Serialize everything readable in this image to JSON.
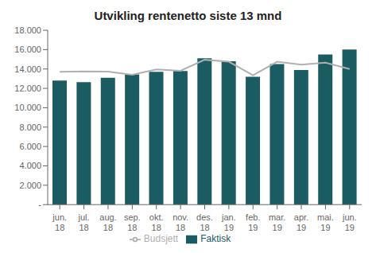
{
  "chart_data": {
    "type": "bar",
    "title": "Utvikling rentenetto siste 13  mnd",
    "categories": [
      "jun.\n18",
      "jul.\n18",
      "aug.\n18",
      "sep.\n18",
      "okt.\n18",
      "nov.\n18",
      "des.\n18",
      "jan.\n19",
      "feb.\n19",
      "mar.\n19",
      "apr.\n19",
      "mai.\n19",
      "jun.\n19"
    ],
    "series": [
      {
        "name": "Faktisk",
        "type": "bar",
        "color": "#1a5c62",
        "values": [
          12800,
          12650,
          13100,
          13450,
          13700,
          13800,
          15100,
          14800,
          13200,
          14500,
          13900,
          15500,
          16000
        ]
      },
      {
        "name": "Budsjett",
        "type": "line",
        "color": "#b0b0b0",
        "values": [
          13700,
          13750,
          13720,
          13400,
          13950,
          13820,
          14950,
          14750,
          13350,
          14750,
          14450,
          14650,
          14000
        ]
      }
    ],
    "ylim": [
      0,
      18000
    ],
    "yticks": [
      {
        "value": 0,
        "label": "-"
      },
      {
        "value": 2000,
        "label": "2.000"
      },
      {
        "value": 4000,
        "label": "4.000"
      },
      {
        "value": 6000,
        "label": "6.000"
      },
      {
        "value": 8000,
        "label": "8.000"
      },
      {
        "value": 10000,
        "label": "10.000"
      },
      {
        "value": 12000,
        "label": "12.000"
      },
      {
        "value": 14000,
        "label": "14.000"
      },
      {
        "value": 16000,
        "label": "16.000"
      },
      {
        "value": 18000,
        "label": "18.000"
      }
    ],
    "grid": false,
    "legend": "bottom"
  }
}
